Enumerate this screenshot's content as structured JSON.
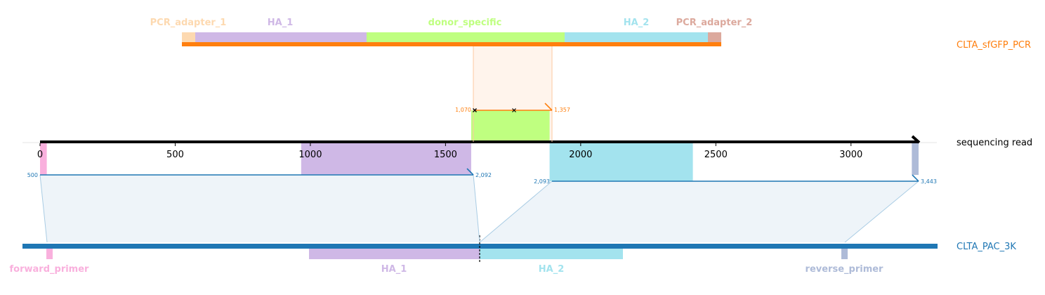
{
  "colors": {
    "orange": "#ff7f0e",
    "blue": "#1f77b4",
    "black": "#000000",
    "pcr_adapter_1": "#fdd9b0",
    "pcr_adapter_2": "#dca99d",
    "ha1": "#cfb8e6",
    "donor_specific": "#bfff80",
    "ha2": "#a3e3ee",
    "forward_primer": "#f9b0dd",
    "reverse_primer": "#aebbd8",
    "fill_orange": "#fff4ec",
    "fill_blue": "#eef4f9"
  },
  "tracks": {
    "top": {
      "name": "CLTA_sfGFP_PCR",
      "color": "orange"
    },
    "read": {
      "name": "sequencing read",
      "color": "black"
    },
    "bottom": {
      "name": "CLTA_PAC_3K",
      "color": "blue"
    }
  },
  "axis": {
    "ticks": [
      0,
      500,
      1000,
      1500,
      2000,
      2500,
      3000
    ],
    "tick_labels": [
      "0",
      "500",
      "1000",
      "1500",
      "2000",
      "2500",
      "3000"
    ],
    "max": 3250
  },
  "top_features": [
    {
      "label": "PCR_adapter_1",
      "color": "pcr_adapter_1"
    },
    {
      "label": "HA_1",
      "color": "ha1"
    },
    {
      "label": "donor_specific",
      "color": "donor_specific"
    },
    {
      "label": "HA_2",
      "color": "ha2"
    },
    {
      "label": "PCR_adapter_2",
      "color": "pcr_adapter_2"
    }
  ],
  "bottom_features": [
    {
      "label": "forward_primer",
      "color": "forward_primer"
    },
    {
      "label": "HA_1",
      "color": "ha1"
    },
    {
      "label": "HA_2",
      "color": "ha2"
    },
    {
      "label": "reverse_primer",
      "color": "reverse_primer"
    }
  ],
  "read_features": [
    {
      "name": "forward-primer-on-read",
      "start": 0,
      "end": 25,
      "color": "forward_primer"
    },
    {
      "name": "ha1-on-read",
      "start": 966,
      "end": 1595,
      "color": "ha1"
    },
    {
      "name": "donor-specific-on-read",
      "start": 1595,
      "end": 1885,
      "color": "donor_specific"
    },
    {
      "name": "ha2-on-read",
      "start": 1885,
      "end": 2415,
      "color": "ha2"
    },
    {
      "name": "reverse-primer-on-read",
      "start": 3225,
      "end": 3250,
      "color": "reverse_primer"
    }
  ],
  "alignments": [
    {
      "track": "top",
      "query_start": 1595,
      "query_end": 1885,
      "start_label": "1,070",
      "end_label": "1,357",
      "color": "orange"
    },
    {
      "track": "bottom",
      "query_start": 0,
      "query_end": 1595,
      "start_label": "500",
      "end_label": "2,092",
      "color": "blue"
    },
    {
      "track": "bottom",
      "query_start": 1885,
      "query_end": 3250,
      "start_label": "2,093",
      "end_label": "3,443",
      "color": "blue"
    }
  ]
}
